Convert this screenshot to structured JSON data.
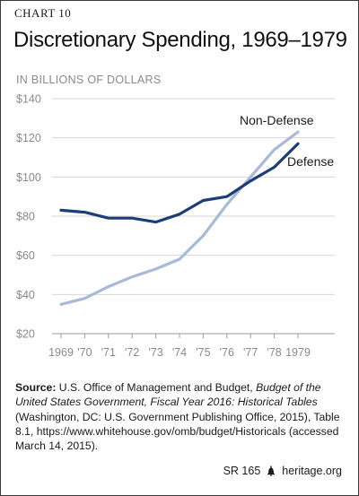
{
  "chart_number": "CHART 10",
  "title": "Discretionary Spending, 1969–1979",
  "subtitle": "IN BILLIONS OF DOLLARS",
  "source": {
    "label": "Source:",
    "text_1": "U.S. Office of Management and Budget,",
    "italic": "Budget of the United States Government, Fiscal Year 2016: Historical Tables",
    "text_2": "(Washington, DC: U.S. Government Publishing Office, 2015), Table 8.1, https://www.whitehouse.gov/omb/budget/Historicals (accessed March 14, 2015)."
  },
  "footer": {
    "report": "SR 165",
    "site": "heritage.org"
  },
  "chart_data": {
    "type": "line",
    "title": "Discretionary Spending, 1969–1979",
    "ylabel": "IN BILLIONS OF DOLLARS",
    "x": [
      1969,
      1970,
      1971,
      1972,
      1973,
      1974,
      1975,
      1976,
      1977,
      1978,
      1979
    ],
    "x_tick_labels": [
      "1969",
      "'70",
      "'71",
      "'72",
      "'73",
      "'74",
      "'75",
      "'76",
      "'77",
      "'78",
      "1979"
    ],
    "y_ticks": [
      "$20",
      "$40",
      "$60",
      "$80",
      "$100",
      "$120",
      "$140"
    ],
    "ylim": [
      20,
      140
    ],
    "grid": true,
    "series": [
      {
        "name": "Non-Defense",
        "color": "#a9b9d9",
        "values": [
          35,
          38,
          44,
          49,
          53,
          58,
          70,
          86,
          100,
          114,
          123
        ]
      },
      {
        "name": "Defense",
        "color": "#1d3d78",
        "values": [
          83,
          82,
          79,
          79,
          77,
          81,
          88,
          90,
          98,
          105,
          117
        ]
      }
    ]
  }
}
